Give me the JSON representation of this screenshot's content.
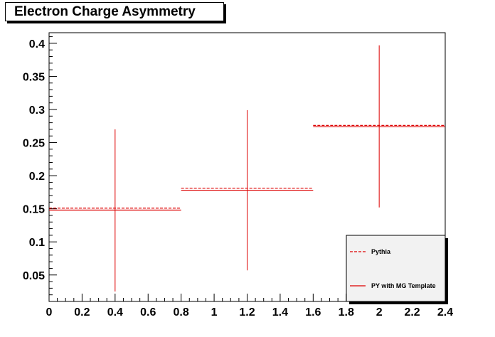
{
  "chart_data": {
    "type": "scatter",
    "title": "Electron Charge Asymmetry",
    "xlabel": "",
    "ylabel": "",
    "xlim": [
      0,
      2.4
    ],
    "ylim": [
      0.01,
      0.416
    ],
    "x_ticks": [
      "0",
      "0.2",
      "0.4",
      "0.6",
      "0.8",
      "1",
      "1.2",
      "1.4",
      "1.6",
      "1.8",
      "2",
      "2.2",
      "2.4"
    ],
    "y_ticks": [
      "0.05",
      "0.1",
      "0.15",
      "0.2",
      "0.25",
      "0.3",
      "0.35",
      "0.4"
    ],
    "grid": false,
    "legend_position": "bottom-right",
    "series": [
      {
        "name": "Pythia",
        "color": "#dd0000",
        "line_style": "dashed",
        "bins": [
          {
            "x_low": 0.0,
            "x_high": 0.8,
            "y": 0.151
          },
          {
            "x_low": 0.8,
            "x_high": 1.6,
            "y": 0.181
          },
          {
            "x_low": 1.6,
            "x_high": 2.4,
            "y": 0.276
          }
        ]
      },
      {
        "name": "PY with MG Template",
        "color": "#dd0000",
        "line_style": "solid",
        "bins": [
          {
            "x_low": 0.0,
            "x_high": 0.8,
            "x": 0.4,
            "y": 0.148,
            "y_err_low": 0.025,
            "y_err_high": 0.27
          },
          {
            "x_low": 0.8,
            "x_high": 1.6,
            "x": 1.2,
            "y": 0.178,
            "y_err_low": 0.057,
            "y_err_high": 0.299
          },
          {
            "x_low": 1.6,
            "x_high": 2.4,
            "x": 2.0,
            "y": 0.274,
            "y_err_low": 0.152,
            "y_err_high": 0.397
          }
        ]
      }
    ]
  }
}
